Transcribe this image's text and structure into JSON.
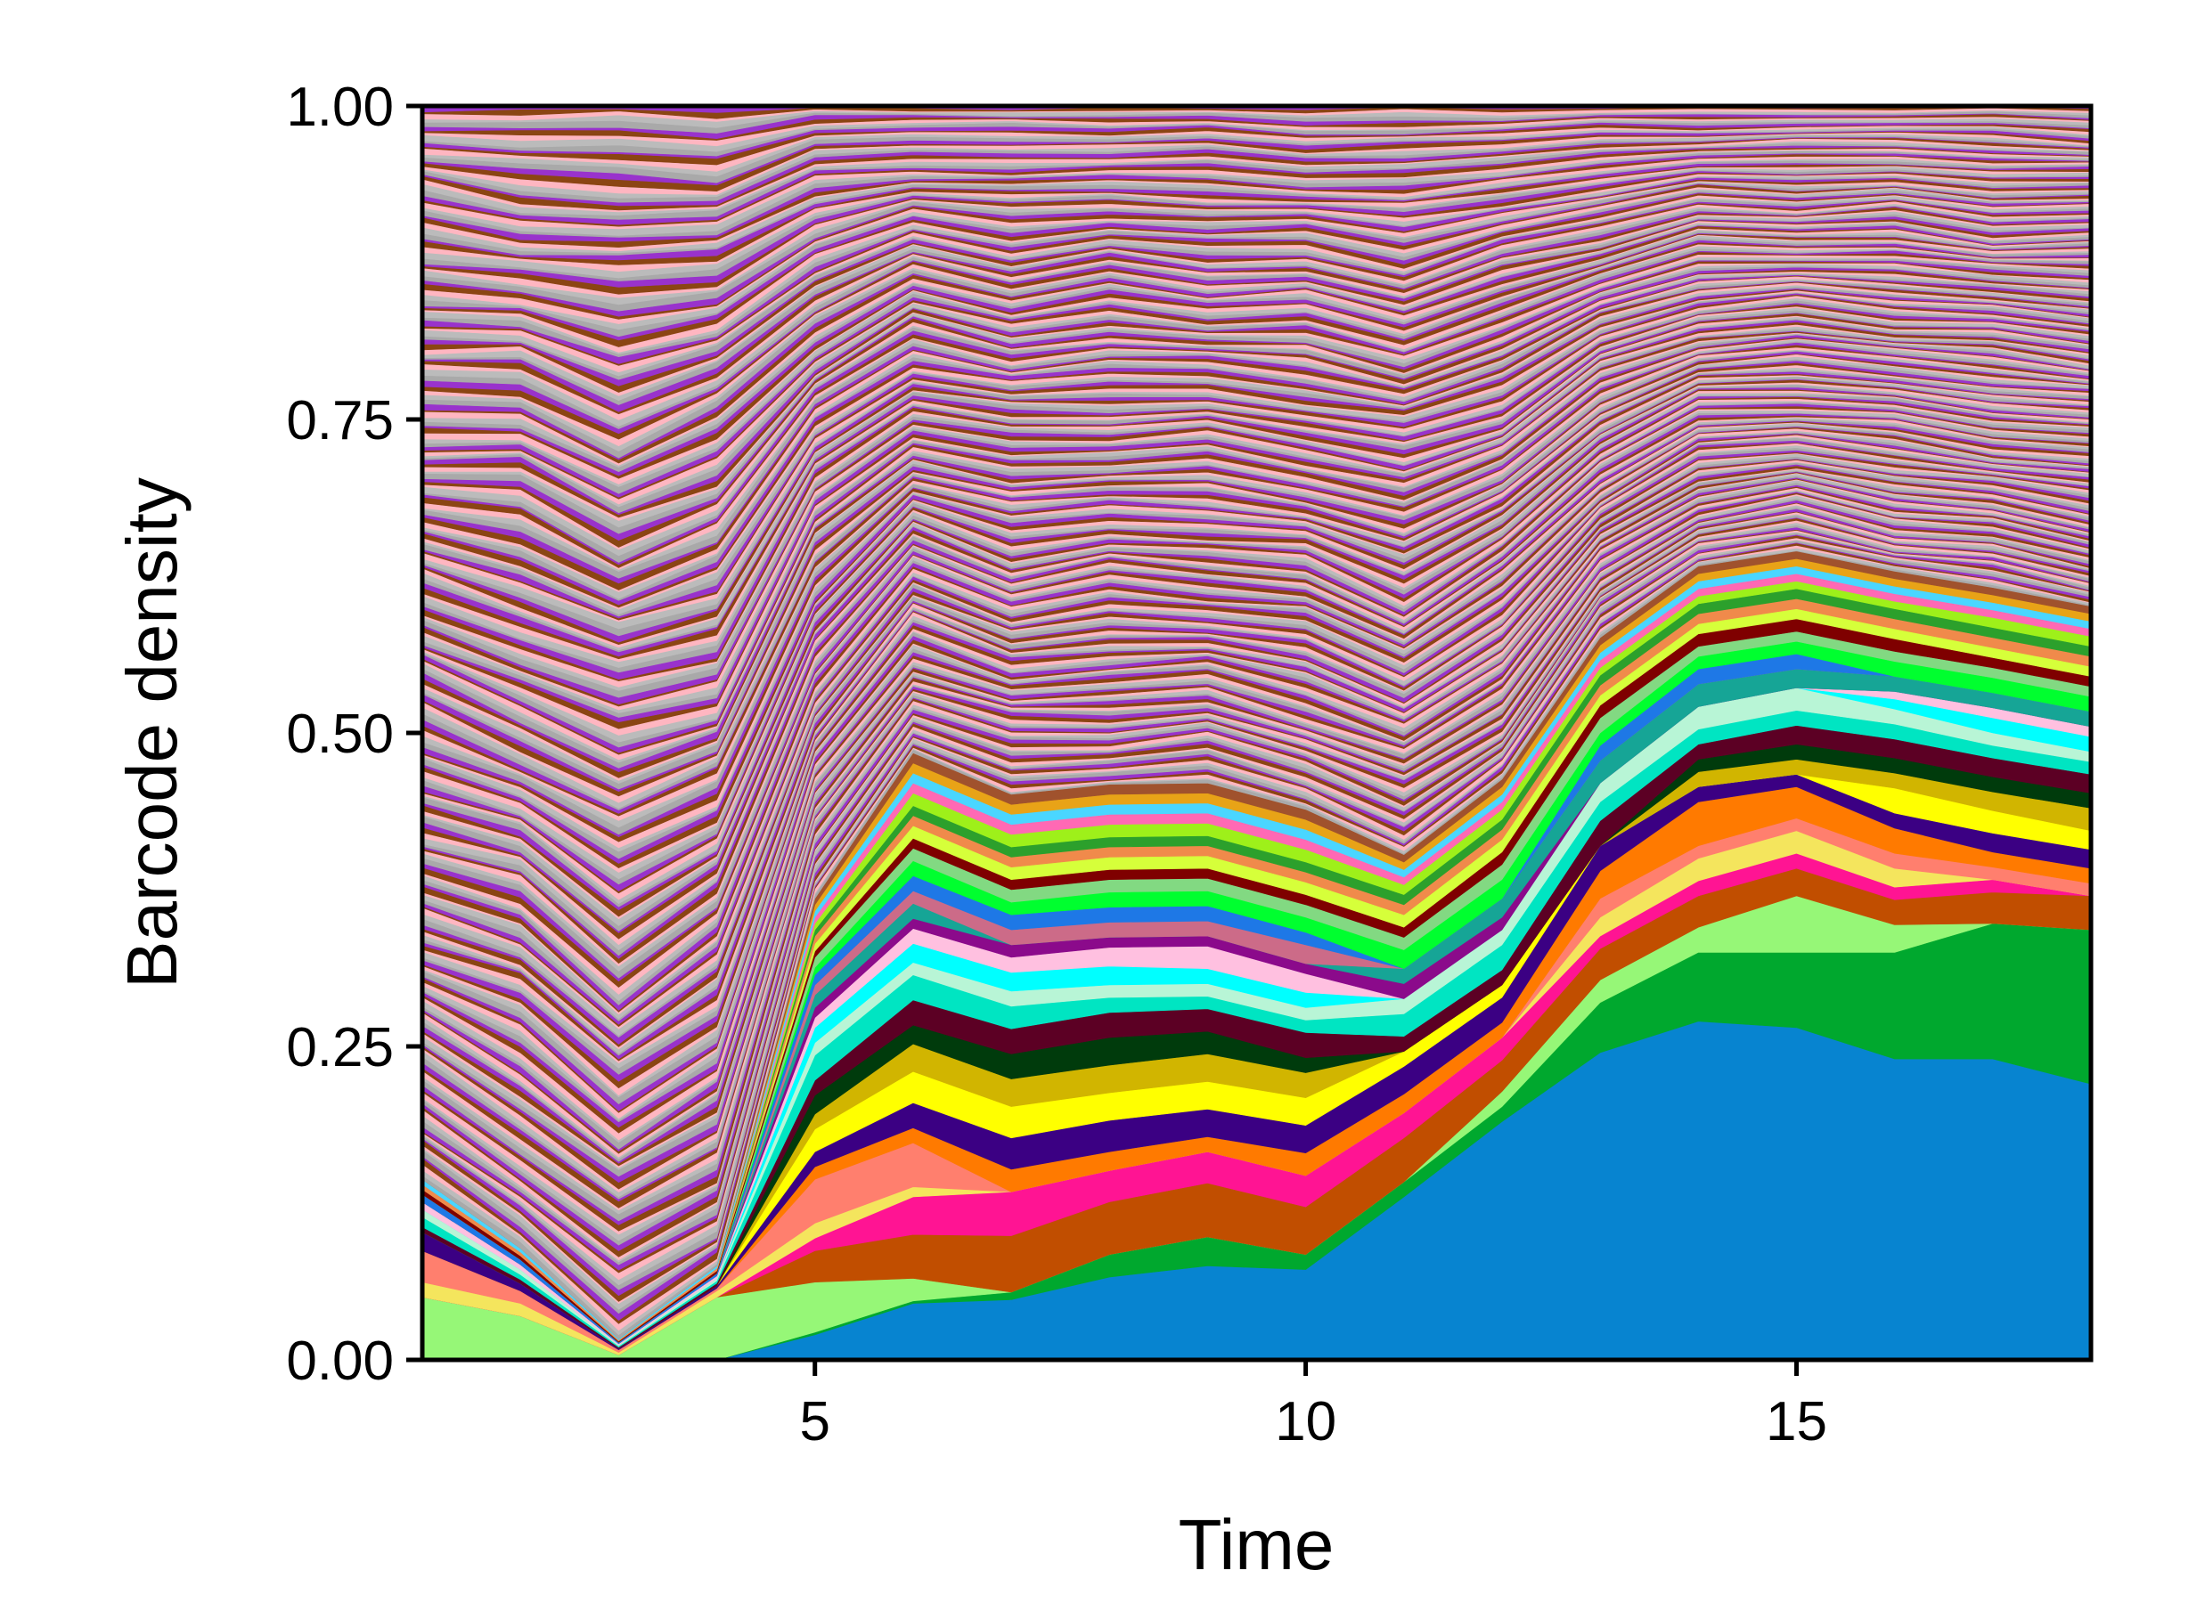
{
  "chart_data": {
    "type": "area",
    "stacked": true,
    "normalized": true,
    "xlabel": "Time",
    "ylabel": "Barcode density",
    "xlim": [
      1,
      18
    ],
    "ylim": [
      0,
      1
    ],
    "x": [
      1,
      2,
      3,
      4,
      5,
      6,
      7,
      8,
      9,
      10,
      11,
      12,
      13,
      14,
      15,
      16,
      17,
      18
    ],
    "x_ticks": [
      5,
      10,
      15
    ],
    "x_tick_labels": [
      "5",
      "10",
      "15"
    ],
    "y_ticks": [
      0,
      0.25,
      0.5,
      0.75,
      1.0
    ],
    "y_tick_labels": [
      "0.00",
      "0.25",
      "0.50",
      "0.75",
      "1.00"
    ],
    "grid": false,
    "legend": "none",
    "series": [
      {
        "color": "#0784d0",
        "values": [
          0.0,
          0.0,
          0.0,
          0.0,
          0.02,
          0.045,
          0.048,
          0.066,
          0.075,
          0.072,
          0.13,
          0.19,
          0.245,
          0.27,
          0.265,
          0.24,
          0.24,
          0.22
        ]
      },
      {
        "color": "#00a82e",
        "values": [
          0.0,
          0.0,
          0.0,
          0.0,
          0.002,
          0.002,
          0.006,
          0.018,
          0.023,
          0.012,
          0.012,
          0.012,
          0.04,
          0.055,
          0.06,
          0.085,
          0.108,
          0.123
        ]
      },
      {
        "color": "#96f777",
        "values": [
          0.05,
          0.035,
          0.004,
          0.05,
          0.04,
          0.018,
          0.0,
          0.0,
          0.0,
          0.0,
          0.0,
          0.012,
          0.018,
          0.02,
          0.045,
          0.022,
          0.0,
          0.0
        ]
      },
      {
        "color": "#c14e00",
        "values": [
          0.0,
          0.0,
          0.0,
          0.0,
          0.025,
          0.035,
          0.045,
          0.042,
          0.043,
          0.038,
          0.035,
          0.025,
          0.025,
          0.025,
          0.022,
          0.02,
          0.025,
          0.027
        ]
      },
      {
        "color": "#ff1493",
        "values": [
          0.0,
          0.0,
          0.0,
          0.0,
          0.01,
          0.03,
          0.035,
          0.025,
          0.025,
          0.025,
          0.02,
          0.018,
          0.01,
          0.012,
          0.012,
          0.01,
          0.01,
          0.0
        ]
      },
      {
        "color": "#f4e55d",
        "values": [
          0.012,
          0.01,
          0.002,
          0.005,
          0.012,
          0.008,
          0.0,
          0.0,
          0.0,
          0.0,
          0.0,
          0.0,
          0.015,
          0.018,
          0.018,
          0.015,
          0.0,
          0.0
        ]
      },
      {
        "color": "#ff7f6e",
        "values": [
          0.025,
          0.01,
          0.002,
          0.002,
          0.035,
          0.035,
          0.0,
          0.0,
          0.0,
          0.0,
          0.0,
          0.0,
          0.015,
          0.01,
          0.01,
          0.012,
          0.01,
          0.01
        ]
      },
      {
        "color": "#ff7a00",
        "values": [
          0.0,
          0.0,
          0.0,
          0.0,
          0.01,
          0.012,
          0.018,
          0.015,
          0.012,
          0.018,
          0.015,
          0.012,
          0.022,
          0.035,
          0.025,
          0.02,
          0.012,
          0.012
        ]
      },
      {
        "color": "#3b0083",
        "values": [
          0.015,
          0.006,
          0.001,
          0.002,
          0.012,
          0.02,
          0.025,
          0.025,
          0.022,
          0.022,
          0.022,
          0.02,
          0.02,
          0.012,
          0.01,
          0.012,
          0.015,
          0.015
        ]
      },
      {
        "color": "#ffff00",
        "values": [
          0.0,
          0.0,
          0.0,
          0.0,
          0.018,
          0.025,
          0.025,
          0.022,
          0.022,
          0.022,
          0.012,
          0.01,
          0.0,
          0.0,
          0.0,
          0.02,
          0.018,
          0.015
        ]
      },
      {
        "color": "#d1b500",
        "values": [
          0.0,
          0.0,
          0.0,
          0.0,
          0.012,
          0.022,
          0.022,
          0.022,
          0.022,
          0.02,
          0.0,
          0.0,
          0.0,
          0.012,
          0.012,
          0.012,
          0.015,
          0.018
        ]
      },
      {
        "color": "#003b0c",
        "values": [
          0.0,
          0.0,
          0.0,
          0.0,
          0.015,
          0.015,
          0.02,
          0.022,
          0.018,
          0.012,
          0.0,
          0.0,
          0.0,
          0.01,
          0.012,
          0.012,
          0.012,
          0.012
        ]
      },
      {
        "color": "#5c0024",
        "values": [
          0.004,
          0.003,
          0.001,
          0.002,
          0.012,
          0.02,
          0.02,
          0.02,
          0.018,
          0.02,
          0.012,
          0.012,
          0.02,
          0.012,
          0.015,
          0.015,
          0.015,
          0.015
        ]
      },
      {
        "color": "#00e5c2",
        "values": [
          0.008,
          0.004,
          0.001,
          0.002,
          0.02,
          0.02,
          0.018,
          0.012,
          0.01,
          0.01,
          0.018,
          0.02,
          0.015,
          0.012,
          0.012,
          0.012,
          0.01,
          0.01
        ]
      },
      {
        "color": "#b8f5d6",
        "values": [
          0.006,
          0.004,
          0.001,
          0.002,
          0.01,
          0.01,
          0.012,
          0.01,
          0.01,
          0.01,
          0.012,
          0.012,
          0.015,
          0.018,
          0.018,
          0.012,
          0.01,
          0.008
        ]
      },
      {
        "color": "#00ffff",
        "values": [
          0.0,
          0.0,
          0.0,
          0.0,
          0.012,
          0.015,
          0.015,
          0.015,
          0.012,
          0.012,
          0.0,
          0.0,
          0.0,
          0.0,
          0.0,
          0.008,
          0.012,
          0.012
        ]
      },
      {
        "color": "#ffc0e0",
        "values": [
          0.006,
          0.004,
          0.001,
          0.002,
          0.008,
          0.012,
          0.012,
          0.015,
          0.018,
          0.015,
          0.0,
          0.0,
          0.0,
          0.0,
          0.0,
          0.006,
          0.008,
          0.008
        ]
      },
      {
        "color": "#8b0a8b",
        "values": [
          0.0,
          0.0,
          0.0,
          0.0,
          0.008,
          0.008,
          0.01,
          0.008,
          0.008,
          0.008,
          0.012,
          0.01,
          0.0,
          0.0,
          0.0,
          0.0,
          0.0,
          0.0
        ]
      },
      {
        "color": "#16a596",
        "values": [
          0.0,
          0.0,
          0.0,
          0.0,
          0.01,
          0.012,
          0.0,
          0.0,
          0.0,
          0.0,
          0.012,
          0.015,
          0.018,
          0.018,
          0.015,
          0.012,
          0.012,
          0.012
        ]
      },
      {
        "color": "#cc6b88",
        "values": [
          0.0,
          0.0,
          0.0,
          0.0,
          0.008,
          0.01,
          0.012,
          0.012,
          0.012,
          0.015,
          0.0,
          0.0,
          0.0,
          0.0,
          0.0,
          0.0,
          0.0,
          0.0
        ]
      },
      {
        "color": "#1e78e6",
        "values": [
          0.006,
          0.004,
          0.001,
          0.002,
          0.008,
          0.012,
          0.012,
          0.012,
          0.012,
          0.01,
          0.0,
          0.0,
          0.012,
          0.012,
          0.012,
          0.0,
          0.0,
          0.0
        ]
      },
      {
        "color": "#00ff2f",
        "values": [
          0.0,
          0.0,
          0.0,
          0.0,
          0.006,
          0.012,
          0.01,
          0.012,
          0.012,
          0.012,
          0.015,
          0.015,
          0.01,
          0.01,
          0.01,
          0.012,
          0.012,
          0.012
        ]
      },
      {
        "color": "#82d982",
        "values": [
          0.0,
          0.0,
          0.0,
          0.0,
          0.008,
          0.01,
          0.01,
          0.01,
          0.01,
          0.01,
          0.01,
          0.012,
          0.012,
          0.008,
          0.008,
          0.008,
          0.008,
          0.008
        ]
      },
      {
        "color": "#7f0000",
        "values": [
          0.004,
          0.003,
          0.001,
          0.002,
          0.005,
          0.008,
          0.008,
          0.008,
          0.008,
          0.008,
          0.008,
          0.01,
          0.01,
          0.01,
          0.01,
          0.01,
          0.008,
          0.008
        ]
      },
      {
        "color": "#d6ff3a",
        "values": [
          0.0,
          0.0,
          0.0,
          0.0,
          0.006,
          0.01,
          0.01,
          0.01,
          0.01,
          0.01,
          0.01,
          0.01,
          0.008,
          0.008,
          0.008,
          0.008,
          0.008,
          0.008
        ]
      },
      {
        "color": "#f08a4b",
        "values": [
          0.004,
          0.003,
          0.001,
          0.002,
          0.006,
          0.008,
          0.008,
          0.008,
          0.008,
          0.008,
          0.008,
          0.008,
          0.008,
          0.008,
          0.008,
          0.008,
          0.008,
          0.008
        ]
      },
      {
        "color": "#2ca02c",
        "values": [
          0.0,
          0.0,
          0.0,
          0.0,
          0.005,
          0.008,
          0.008,
          0.008,
          0.008,
          0.008,
          0.008,
          0.008,
          0.008,
          0.008,
          0.008,
          0.008,
          0.008,
          0.008
        ]
      },
      {
        "color": "#9ef01a",
        "values": [
          0.0,
          0.0,
          0.0,
          0.0,
          0.005,
          0.01,
          0.01,
          0.01,
          0.01,
          0.01,
          0.008,
          0.008,
          0.006,
          0.006,
          0.006,
          0.006,
          0.008,
          0.008
        ]
      },
      {
        "color": "#ff69b4",
        "values": [
          0.0,
          0.0,
          0.0,
          0.0,
          0.005,
          0.008,
          0.008,
          0.008,
          0.008,
          0.008,
          0.006,
          0.006,
          0.006,
          0.006,
          0.006,
          0.006,
          0.006,
          0.006
        ]
      },
      {
        "color": "#4ad6ff",
        "values": [
          0.004,
          0.003,
          0.001,
          0.002,
          0.005,
          0.008,
          0.008,
          0.008,
          0.008,
          0.008,
          0.006,
          0.006,
          0.006,
          0.006,
          0.006,
          0.006,
          0.006,
          0.006
        ]
      },
      {
        "color": "#e8a317",
        "values": [
          0.0,
          0.0,
          0.0,
          0.0,
          0.005,
          0.008,
          0.008,
          0.008,
          0.008,
          0.008,
          0.006,
          0.006,
          0.006,
          0.006,
          0.006,
          0.006,
          0.006,
          0.006
        ]
      },
      {
        "color": "#a0522d",
        "values": [
          0.0,
          0.0,
          0.0,
          0.0,
          0.005,
          0.008,
          0.008,
          0.008,
          0.008,
          0.008,
          0.006,
          0.006,
          0.006,
          0.006,
          0.006,
          0.006,
          0.006,
          0.006
        ]
      }
    ],
    "tail_band_count": 280,
    "tail_palette": [
      "#a9a9a9",
      "#c0b8a8",
      "#9a9a9a",
      "#b5aa98",
      "#a8b5a0",
      "#c8a8b8",
      "#a0b0c8",
      "#bbbbbb",
      "#8fa89a",
      "#c4b080",
      "#b090c0",
      "#90c0b0",
      "#d0a0a0",
      "#a0a0d0",
      "#ffb6c1",
      "#9acd32",
      "#4169e1",
      "#ff4500",
      "#32cd32",
      "#da70d6",
      "#000080",
      "#8b4513",
      "#20b2aa",
      "#ff1493",
      "#7fff00",
      "#dc143c",
      "#00ced1",
      "#ffd700",
      "#9932cc",
      "#228b22",
      "#ff8c00",
      "#4682b4",
      "#000000",
      "#ffffff",
      "#b22222",
      "#6b8e23"
    ],
    "tail_wave_seeds": [
      [
        0.9,
        1.7
      ],
      [
        2.3,
        0.4
      ],
      [
        1.1,
        3.1
      ],
      [
        0.5,
        2.2
      ],
      [
        2.9,
        1.3
      ],
      [
        1.6,
        0.8
      ]
    ]
  }
}
